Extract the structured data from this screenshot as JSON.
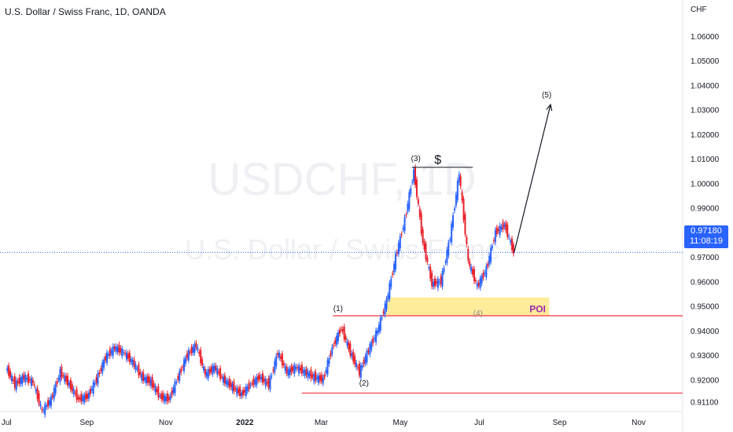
{
  "header": {
    "title": "U.S. Dollar / Swiss Franc, 1D, OANDA"
  },
  "watermark": {
    "line1": "USDCHF, 1D",
    "line2": "U.S. Dollar / Swiss Franc"
  },
  "price_axis": {
    "currency": "CHF"
  },
  "last_price": {
    "value": "0.97180",
    "countdown": "11:08:19"
  },
  "annotations": {
    "wave1": "(1)",
    "wave2": "(2)",
    "wave3": "(3)",
    "wave4": "(4)",
    "wave5": "(5)",
    "dollar": "$",
    "poi": "POI"
  },
  "colors": {
    "up_candle": "#2962ff",
    "down_candle": "#e8202a",
    "poi_zone": "#ffe98a",
    "support_line": "#f23645",
    "price_line": "#2962ff",
    "poi_text": "#9c27b0"
  },
  "chart_data": {
    "type": "line",
    "title": "U.S. Dollar / Swiss Franc, 1D, OANDA",
    "symbol": "USDCHF",
    "interval": "1D",
    "exchange": "OANDA",
    "y_unit": "CHF",
    "ylim": [
      0.906,
      1.066
    ],
    "y_ticks": [
      "0.91100",
      "0.92000",
      "0.93000",
      "0.94000",
      "0.95000",
      "0.96000",
      "0.97000",
      "0.98000",
      "0.99000",
      "1.00000",
      "1.01000",
      "1.02000",
      "1.03000",
      "1.04000",
      "1.05000",
      "1.06000"
    ],
    "x_ticks": [
      "Jul",
      "Sep",
      "Nov",
      "2022",
      "Mar",
      "May",
      "Jul",
      "Sep",
      "Nov"
    ],
    "xlim": [
      "2021-06-26",
      "2022-12-05"
    ],
    "series": [
      {
        "points": [
          [
            "2021-07-01",
            0.925
          ],
          [
            "2021-07-08",
            0.918
          ],
          [
            "2021-07-15",
            0.921
          ],
          [
            "2021-07-22",
            0.919
          ],
          [
            "2021-07-29",
            0.907
          ],
          [
            "2021-08-05",
            0.912
          ],
          [
            "2021-08-12",
            0.923
          ],
          [
            "2021-08-19",
            0.918
          ],
          [
            "2021-08-26",
            0.912
          ],
          [
            "2021-09-02",
            0.913
          ],
          [
            "2021-09-09",
            0.92
          ],
          [
            "2021-09-16",
            0.929
          ],
          [
            "2021-09-23",
            0.933
          ],
          [
            "2021-09-30",
            0.931
          ],
          [
            "2021-10-07",
            0.927
          ],
          [
            "2021-10-14",
            0.921
          ],
          [
            "2021-10-21",
            0.919
          ],
          [
            "2021-10-28",
            0.913
          ],
          [
            "2021-11-04",
            0.912
          ],
          [
            "2021-11-11",
            0.921
          ],
          [
            "2021-11-18",
            0.93
          ],
          [
            "2021-11-25",
            0.934
          ],
          [
            "2021-12-02",
            0.922
          ],
          [
            "2021-12-09",
            0.925
          ],
          [
            "2021-12-16",
            0.92
          ],
          [
            "2021-12-23",
            0.917
          ],
          [
            "2021-12-30",
            0.914
          ],
          [
            "2022-01-06",
            0.918
          ],
          [
            "2022-01-13",
            0.921
          ],
          [
            "2022-01-20",
            0.918
          ],
          [
            "2022-01-27",
            0.931
          ],
          [
            "2022-02-03",
            0.923
          ],
          [
            "2022-02-10",
            0.925
          ],
          [
            "2022-02-17",
            0.923
          ],
          [
            "2022-02-24",
            0.921
          ],
          [
            "2022-03-03",
            0.92
          ],
          [
            "2022-03-10",
            0.933
          ],
          [
            "2022-03-17",
            0.941
          ],
          [
            "2022-03-24",
            0.931
          ],
          [
            "2022-03-31",
            0.923
          ],
          [
            "2022-04-07",
            0.932
          ],
          [
            "2022-04-14",
            0.94
          ],
          [
            "2022-04-21",
            0.952
          ],
          [
            "2022-04-28",
            0.97
          ],
          [
            "2022-05-05",
            0.985
          ],
          [
            "2022-05-12",
            1.005
          ],
          [
            "2022-05-19",
            0.976
          ],
          [
            "2022-05-26",
            0.959
          ],
          [
            "2022-06-02",
            0.96
          ],
          [
            "2022-06-09",
            0.978
          ],
          [
            "2022-06-16",
            1.004
          ],
          [
            "2022-06-23",
            0.968
          ],
          [
            "2022-06-30",
            0.958
          ],
          [
            "2022-07-07",
            0.965
          ],
          [
            "2022-07-14",
            0.98
          ],
          [
            "2022-07-21",
            0.983
          ],
          [
            "2022-07-28",
            0.972
          ]
        ]
      }
    ],
    "levels": [
      0.946,
      0.9145
    ],
    "poi_zone": {
      "from_date": "2022-04-20",
      "to_date": "2022-08-24",
      "low": 0.946,
      "high": 0.9535
    },
    "projection": {
      "from": [
        "2022-07-28",
        0.972
      ],
      "to": [
        "2022-08-25",
        1.032
      ]
    },
    "last_value": 0.9718
  }
}
